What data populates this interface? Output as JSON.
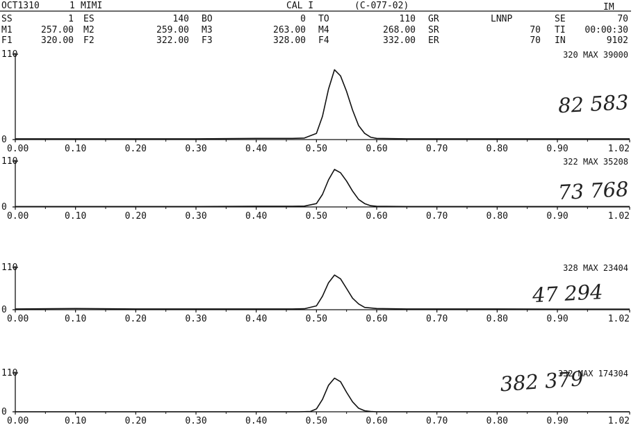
{
  "header": {
    "row1": {
      "date_code": "OCT1310",
      "run": "1",
      "operator": "MIMI",
      "calibration": "CAL I",
      "sample_id": "(C-077-02)",
      "mode": "IM"
    },
    "row2": [
      {
        "label": "SS",
        "value": "1"
      },
      {
        "label": "ES",
        "value": "140"
      },
      {
        "label": "BO",
        "value": "0"
      },
      {
        "label": "TO",
        "value": "110"
      },
      {
        "label": "GR",
        "value": ""
      },
      {
        "label": "LNNP",
        "value": ""
      },
      {
        "label": "SE",
        "value": "70"
      }
    ],
    "row3": [
      {
        "label": "M1",
        "value": "257.00"
      },
      {
        "label": "M2",
        "value": "259.00"
      },
      {
        "label": "M3",
        "value": "263.00"
      },
      {
        "label": "M4",
        "value": "268.00"
      },
      {
        "label": "SR",
        "value": "70"
      },
      {
        "label": "TI",
        "value": "00:00:30"
      }
    ],
    "row4": [
      {
        "label": "F1",
        "value": "320.00"
      },
      {
        "label": "F2",
        "value": "322.00"
      },
      {
        "label": "F3",
        "value": "328.00"
      },
      {
        "label": "F4",
        "value": "332.00"
      },
      {
        "label": "ER",
        "value": "70"
      },
      {
        "label": "IN",
        "value": "9102"
      }
    ]
  },
  "chart_data": [
    {
      "type": "line",
      "max_label": "320 MAX 39000",
      "handwritten": "82 583",
      "ylim": [
        0,
        110
      ],
      "xlim": [
        0,
        1.02
      ],
      "y_ticks": [
        "110",
        "0"
      ],
      "x_ticks": [
        "0.00",
        "0.10",
        "0.20",
        "0.30",
        "0.40",
        "0.50",
        "0.60",
        "0.70",
        "0.80",
        "0.90",
        "1.02"
      ],
      "series": [
        {
          "x": [
            0,
            0.1,
            0.2,
            0.3,
            0.4,
            0.46,
            0.48,
            0.5,
            0.51,
            0.52,
            0.53,
            0.54,
            0.55,
            0.56,
            0.57,
            0.58,
            0.59,
            0.6,
            0.65,
            0.7,
            0.8,
            0.9,
            1.02
          ],
          "y": [
            1,
            1,
            1,
            1,
            1.5,
            1.5,
            2,
            8,
            30,
            65,
            90,
            82,
            62,
            38,
            18,
            8,
            3,
            1.5,
            1,
            1,
            1,
            1,
            1
          ]
        }
      ]
    },
    {
      "type": "line",
      "max_label": "322 MAX 35208",
      "handwritten": "73 768",
      "ylim": [
        0,
        110
      ],
      "xlim": [
        0,
        1.02
      ],
      "y_ticks": [
        "110",
        "0"
      ],
      "x_ticks": [
        "0.00",
        "0.10",
        "0.20",
        "0.30",
        "0.40",
        "0.50",
        "0.60",
        "0.70",
        "0.80",
        "0.90",
        "1.02"
      ],
      "series": [
        {
          "x": [
            0,
            0.1,
            0.2,
            0.3,
            0.4,
            0.46,
            0.48,
            0.5,
            0.51,
            0.52,
            0.53,
            0.54,
            0.55,
            0.56,
            0.57,
            0.58,
            0.59,
            0.6,
            0.65,
            0.7,
            0.8,
            0.9,
            1.02
          ],
          "y": [
            1,
            1,
            1,
            1,
            1.5,
            1.5,
            2,
            8,
            30,
            65,
            90,
            82,
            62,
            38,
            18,
            8,
            3,
            1.5,
            1,
            1,
            1,
            1,
            1
          ]
        }
      ]
    },
    {
      "type": "line",
      "max_label": "328 MAX 23404",
      "handwritten": "47 294",
      "ylim": [
        0,
        110
      ],
      "xlim": [
        0,
        1.02
      ],
      "y_ticks": [
        "110",
        "0"
      ],
      "x_ticks": [
        "0.00",
        "0.10",
        "0.20",
        "0.30",
        "0.40",
        "0.50",
        "0.60",
        "0.70",
        "0.80",
        "0.90",
        "1.02"
      ],
      "series": [
        {
          "x": [
            0,
            0.1,
            0.2,
            0.3,
            0.4,
            0.46,
            0.48,
            0.5,
            0.51,
            0.52,
            0.53,
            0.54,
            0.55,
            0.56,
            0.57,
            0.58,
            0.6,
            0.65,
            0.7,
            0.8,
            0.9,
            1.02
          ],
          "y": [
            2,
            3,
            2,
            2,
            2,
            2,
            2.5,
            10,
            35,
            70,
            90,
            80,
            55,
            30,
            15,
            6,
            3,
            2,
            2,
            2,
            1.5,
            1.5
          ]
        }
      ]
    },
    {
      "type": "line",
      "max_label": "332 MAX 174304",
      "handwritten": "382 379",
      "ylim": [
        0,
        110
      ],
      "xlim": [
        0,
        1.02
      ],
      "y_ticks": [
        "110",
        "0"
      ],
      "x_ticks": [
        "0.00",
        "0.10",
        "0.20",
        "0.30",
        "0.40",
        "0.50",
        "0.60",
        "0.70",
        "0.80",
        "0.90",
        "1.02"
      ],
      "series": [
        {
          "x": [
            0,
            0.1,
            0.2,
            0.3,
            0.4,
            0.47,
            0.49,
            0.5,
            0.51,
            0.52,
            0.53,
            0.54,
            0.55,
            0.56,
            0.57,
            0.58,
            0.59,
            0.6,
            0.65,
            0.7,
            0.8,
            0.9,
            1.02
          ],
          "y": [
            0,
            0,
            0,
            0,
            0,
            0,
            1,
            8,
            35,
            75,
            95,
            85,
            55,
            28,
            10,
            3,
            1,
            0,
            0,
            0,
            0,
            0,
            0
          ]
        }
      ]
    }
  ]
}
